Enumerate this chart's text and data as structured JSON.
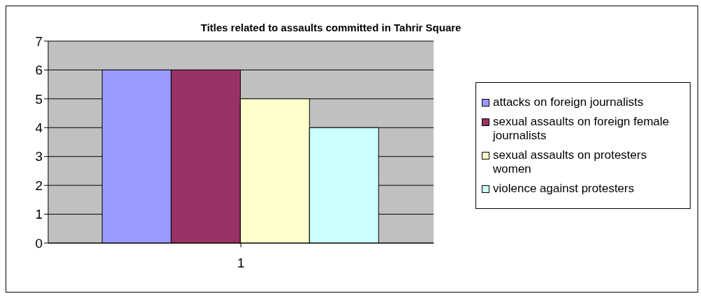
{
  "chart_data": {
    "type": "bar",
    "title": "Titles related to assaults committed in Tahrir Square",
    "categories": [
      "1"
    ],
    "series": [
      {
        "name": "attacks on foreign journalists",
        "color": "#9999ff",
        "values": [
          6
        ]
      },
      {
        "name": "sexual assaults on foreign female journalists",
        "color": "#993366",
        "values": [
          6
        ]
      },
      {
        "name": "sexual assaults on protesters women",
        "color": "#ffffcc",
        "values": [
          5
        ]
      },
      {
        "name": "violence against protesters",
        "color": "#ccffff",
        "values": [
          4
        ]
      }
    ],
    "ylim": [
      0,
      7
    ],
    "yticks": [
      0,
      1,
      2,
      3,
      4,
      5,
      6,
      7
    ],
    "grid": "y",
    "legend": "right"
  }
}
